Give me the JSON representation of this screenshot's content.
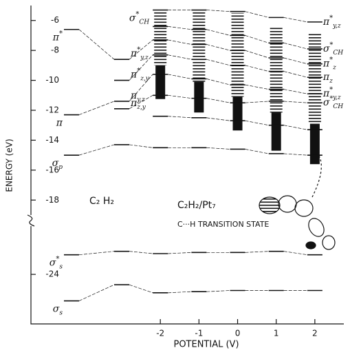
{
  "chart_data": {
    "type": "level_diagram",
    "x_label": "POTENTIAL (V)",
    "y_label": "ENERGY (eV)",
    "annotations": [
      "C₂ H₂",
      "C₂H₂/Pt₇",
      "C···H TRANSITION STATE"
    ],
    "x": [
      -4.3,
      -3,
      -2,
      -1,
      0,
      1,
      2
    ],
    "xlim": [
      -5.35,
      2.75
    ],
    "xticks": [
      -2,
      -1,
      0,
      1,
      2
    ],
    "ylim": [
      -28.3,
      -5
    ],
    "yticks": [
      -6,
      -8,
      -10,
      -12,
      -14,
      -16,
      -18,
      -24
    ],
    "axis_break": -19.5,
    "color": "#111111",
    "series": [
      {
        "values": [
          null,
          null,
          -5.3,
          -5.3,
          -5.4,
          -5.8,
          -6.1
        ],
        "label": {
          "text": "σ",
          "sup": "*",
          "sub": "CH"
        },
        "end_label": {
          "text": "π",
          "sup": "*",
          "sub": "y,z"
        }
      },
      {
        "values": [
          null,
          null,
          -6.4,
          -6.6,
          -7.0,
          -7.5,
          -7.9
        ],
        "end_label": {
          "text": "σ",
          "sup": "*",
          "sub": "CH"
        }
      },
      {
        "values": [
          -6.6,
          -8.6,
          -7.3,
          -7.6,
          -8.0,
          -8.5,
          -8.9
        ],
        "label": {
          "text": "π",
          "sup": "*",
          "sub": ""
        },
        "mid_label": {
          "text": "π",
          "sup": "*",
          "sub": "y,z"
        },
        "end_label": {
          "text": "π",
          "sup": "*",
          "sub": "z"
        }
      },
      {
        "values": [
          null,
          -10.0,
          -8.3,
          -8.6,
          -9.0,
          -9.4,
          -9.8
        ],
        "mid_label": {
          "text": "π",
          "sup": "*",
          "sub": "z,y"
        },
        "end_label": {
          "text": "π",
          "sup": "",
          "sub": "z"
        }
      },
      {
        "values": [
          -12.3,
          -11.4,
          -9.6,
          -9.9,
          -10.3,
          -10.6,
          -10.9
        ],
        "label": {
          "text": "π",
          "sup": "",
          "sub": ""
        },
        "mid_label": {
          "text": "π",
          "sup": "",
          "sub": "y,z"
        },
        "end_label": {
          "text": "π",
          "sup": "*",
          "sub": "y,z"
        }
      },
      {
        "values": [
          null,
          -11.9,
          -11.0,
          -11.2,
          -11.5,
          -11.4,
          -11.5
        ],
        "mid_label": {
          "text": "π",
          "sup": "",
          "sub": "z,y"
        },
        "end_label": {
          "text": "σ",
          "sup": "*",
          "sub": "CH"
        }
      },
      {
        "values": [
          null,
          null,
          -12.4,
          -12.5,
          -12.7,
          -13.0,
          -13.3
        ]
      },
      {
        "values": [
          -15.0,
          -14.3,
          -14.5,
          -14.5,
          -14.6,
          -14.9,
          -15.0
        ],
        "label": {
          "text": "σ",
          "sup": "",
          "sub": "p"
        }
      },
      {
        "values": [
          -22.3,
          -22.0,
          -22.2,
          -22.1,
          -22.1,
          -22.0,
          -22.3
        ],
        "label": {
          "text": "σ",
          "sup": "",
          "sub": "s"
        },
        "label_mark": "*"
      },
      {
        "values": [
          -26.3,
          -24.9,
          -25.6,
          -25.5,
          -25.4,
          -25.4,
          -25.4
        ],
        "label": {
          "text": "σ",
          "sup": "",
          "sub": "s"
        }
      }
    ],
    "bands": [
      {
        "x": -2,
        "top": -5.4,
        "bottom": -9.0,
        "style": "dashed"
      },
      {
        "x": -2,
        "top": -9.0,
        "bottom": -11.25,
        "style": "solid"
      },
      {
        "x": -1,
        "top": -5.3,
        "bottom": -10.1,
        "style": "dashed"
      },
      {
        "x": -1,
        "top": -10.1,
        "bottom": -12.15,
        "style": "solid"
      },
      {
        "x": 0,
        "top": -5.5,
        "bottom": -11.1,
        "style": "dashed"
      },
      {
        "x": 0,
        "top": -11.1,
        "bottom": -13.35,
        "style": "solid"
      },
      {
        "x": 1,
        "top": -6.4,
        "bottom": -12.15,
        "style": "dashed"
      },
      {
        "x": 1,
        "top": -12.15,
        "bottom": -14.7,
        "style": "solid"
      },
      {
        "x": 2,
        "top": -6.85,
        "bottom": -12.9,
        "style": "dashed"
      },
      {
        "x": 2,
        "top": -12.9,
        "bottom": -15.6,
        "style": "solid"
      }
    ]
  }
}
